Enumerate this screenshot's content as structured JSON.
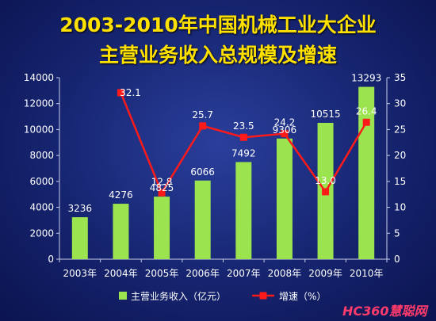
{
  "title_line1": "2003-2010年中国机械工业大企业",
  "title_line2": "主营业务收入总规模及增速",
  "watermark": "HC360慧聪网",
  "chart_data": {
    "type": "bar",
    "categories": [
      "2003年",
      "2004年",
      "2005年",
      "2006年",
      "2007年",
      "2008年",
      "2009年",
      "2010年"
    ],
    "series": [
      {
        "name": "主营业务收入（亿元）",
        "type": "bar",
        "axis": "left",
        "values": [
          3236,
          4276,
          4825,
          6066,
          7492,
          9306,
          10515,
          13293
        ],
        "color": "#9be34f"
      },
      {
        "name": "增速（%）",
        "type": "line",
        "axis": "right",
        "values": [
          null,
          32.1,
          12.8,
          25.7,
          23.5,
          24.2,
          13.0,
          26.4
        ],
        "labels": [
          null,
          "32.1",
          "12.8",
          "25.7",
          "23.5",
          "24.2",
          "13.0",
          "26.4"
        ],
        "color": "#ff1a1a"
      }
    ],
    "y_left": {
      "ylim": [
        0,
        14000
      ],
      "ticks": [
        0,
        2000,
        4000,
        6000,
        8000,
        10000,
        12000,
        14000
      ]
    },
    "y_right": {
      "ylim": [
        0,
        35
      ],
      "ticks": [
        0,
        5,
        10,
        15,
        20,
        25,
        30,
        35
      ]
    },
    "grid": false,
    "legend_position": "bottom"
  }
}
